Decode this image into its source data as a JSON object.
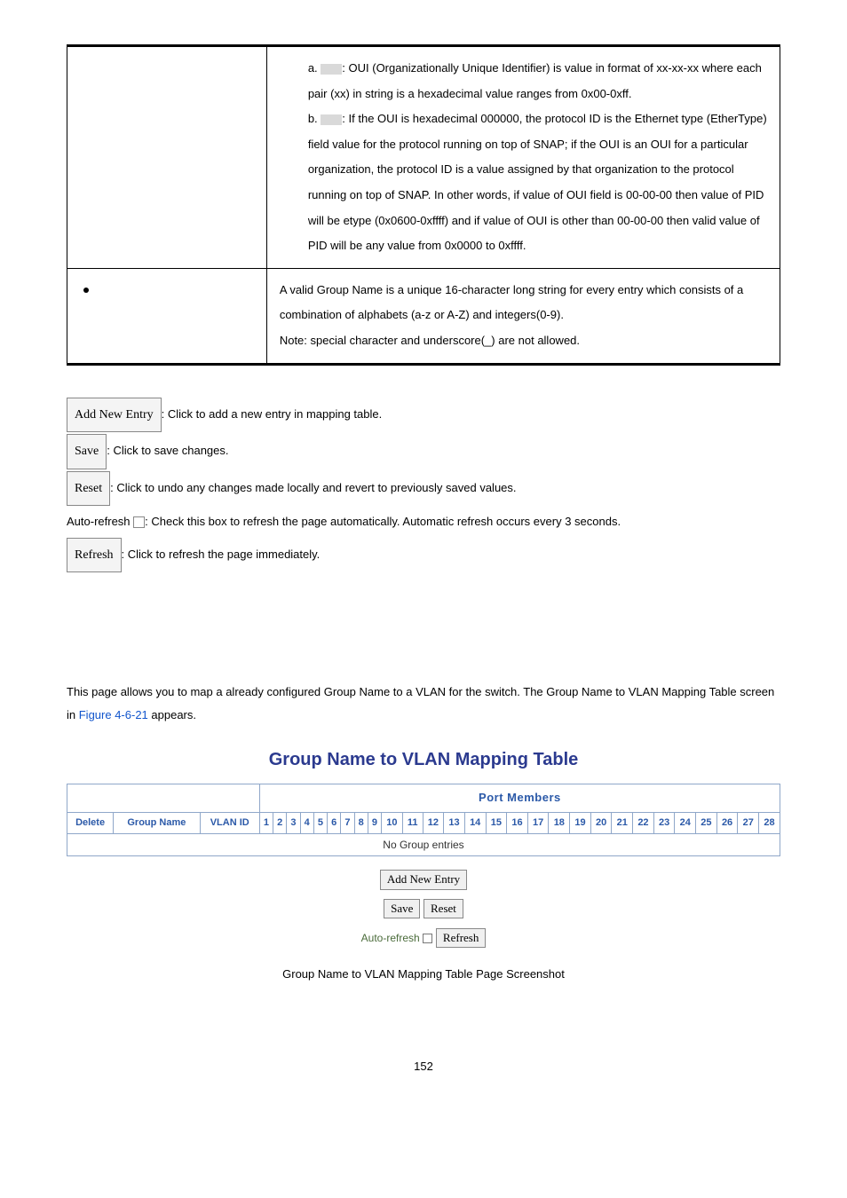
{
  "docTable": {
    "row1": {
      "a_prefix": "a. ",
      "a_body": ": OUI (Organizationally Unique Identifier) is value in format of xx-xx-xx where each pair (xx) in string is a hexadecimal value ranges from 0x00-0xff.",
      "b_prefix": "b. ",
      "b_body": ": If the OUI is hexadecimal 000000, the protocol ID is the Ethernet type (EtherType) field value for the protocol running on top of SNAP; if the OUI is an OUI for a particular organization, the protocol ID is a value assigned by that organization to the protocol running on top of SNAP. In other words, if value of OUI field is 00-00-00 then value of PID will be etype (0x0600-0xffff) and if value of OUI is other than 00-00-00 then valid value of PID will be any value from 0x0000 to 0xffff."
    },
    "row2": {
      "line1": "A valid Group Name is a unique 16-character long string for every entry which consists of a combination of alphabets (a-z or A-Z) and integers(0-9).",
      "note": "Note: special character and underscore(_) are not allowed."
    }
  },
  "buttons": {
    "addNewEntry": {
      "label": "Add New Entry",
      "desc": ": Click to add a new entry in mapping table."
    },
    "save": {
      "label": "Save",
      "desc": ": Click to save changes."
    },
    "reset": {
      "label": "Reset",
      "desc": ": Click to undo any changes made locally and revert to previously saved values."
    },
    "autoRefresh": {
      "prefix": "Auto-refresh ",
      "desc": ": Check this box to refresh the page automatically. Automatic refresh occurs every 3 seconds."
    },
    "refresh": {
      "label": "Refresh",
      "desc": ": Click to refresh the page immediately."
    }
  },
  "paragraph": {
    "part1": "This page allows you to map a already configured Group Name to a VLAN for the switch. The Group Name to VLAN Mapping Table screen in ",
    "figref": "Figure 4-6-21",
    "part2": " appears."
  },
  "mappingTable": {
    "title": "Group Name to VLAN Mapping Table",
    "portMembersHeader": "Port Members",
    "cols": {
      "delete": "Delete",
      "groupName": "Group Name",
      "vlanId": "VLAN ID"
    },
    "ports": [
      "1",
      "2",
      "3",
      "4",
      "5",
      "6",
      "7",
      "8",
      "9",
      "10",
      "11",
      "12",
      "13",
      "14",
      "15",
      "16",
      "17",
      "18",
      "19",
      "20",
      "21",
      "22",
      "23",
      "24",
      "25",
      "26",
      "27",
      "28"
    ],
    "noEntries": "No Group entries",
    "controls": {
      "addNewEntry": "Add New Entry",
      "save": "Save",
      "reset": "Reset",
      "autoRefresh": "Auto-refresh",
      "refresh": "Refresh"
    }
  },
  "caption": "Group Name to VLAN Mapping Table Page Screenshot",
  "pageNumber": "152",
  "style": {
    "brandBlue": "#2b3a8f",
    "linkBlue": "#1155cc",
    "headerBlue": "#2b59a8",
    "tableBorder": "#8fa7c9",
    "autoRefreshGreen": "#4a6b3a"
  }
}
